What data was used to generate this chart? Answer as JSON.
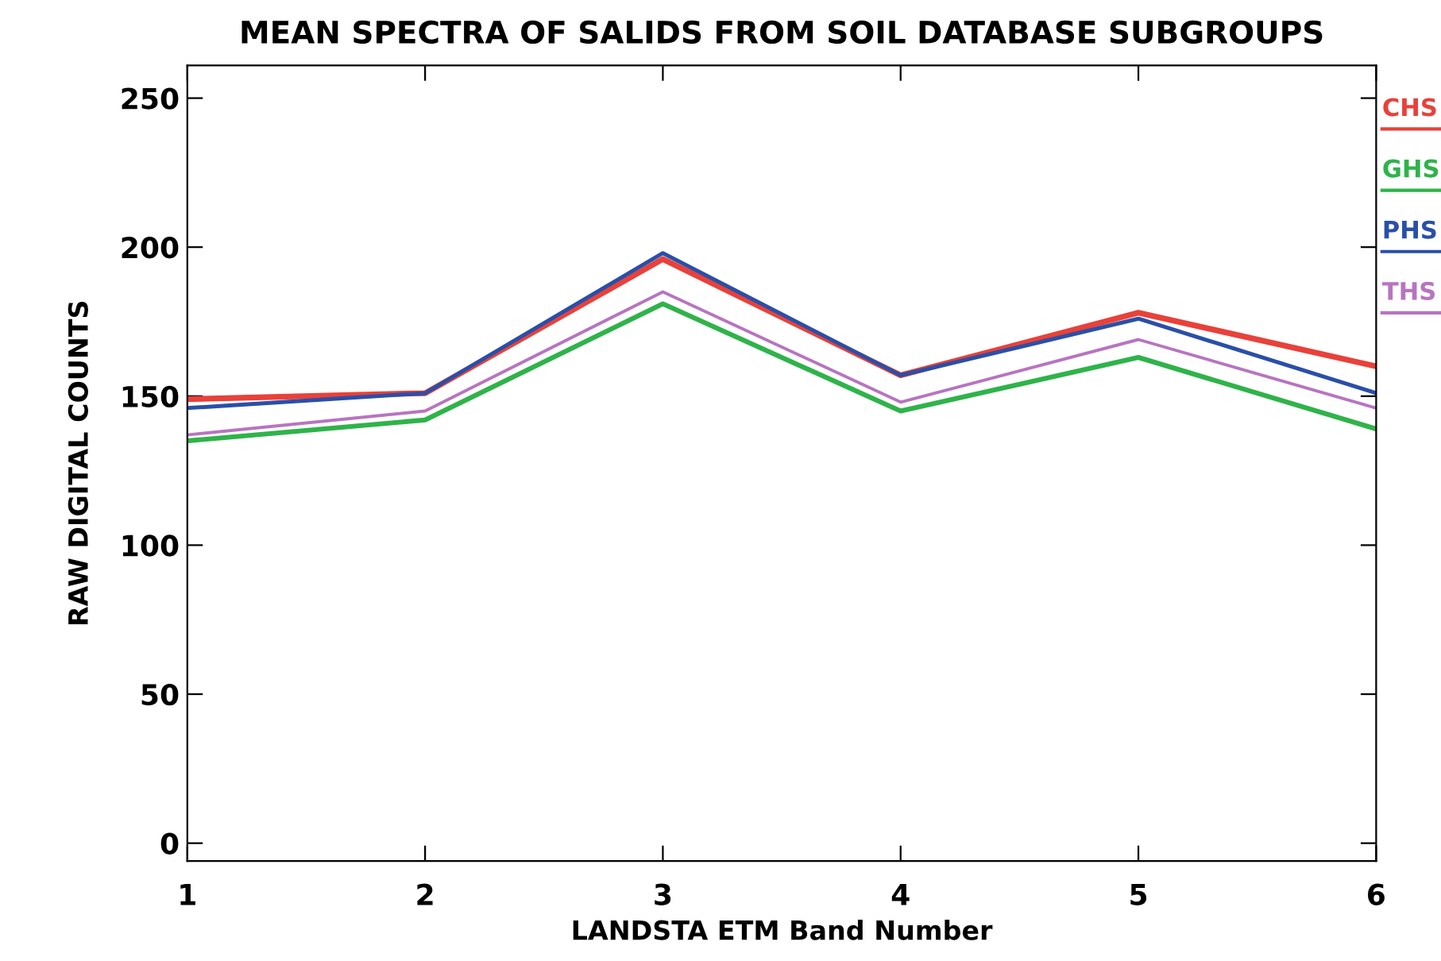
{
  "chart_data": {
    "type": "line",
    "title": "MEAN SPECTRA OF SALIDS FROM SOIL DATABASE SUBGROUPS",
    "xlabel": "LANDSTA ETM Band Number",
    "ylabel": "RAW DIGITAL COUNTS",
    "x": [
      1,
      2,
      3,
      4,
      5,
      6
    ],
    "series": [
      {
        "name": "CHS",
        "color": "#e8413a",
        "values": [
          149,
          151,
          196,
          157,
          178,
          160
        ]
      },
      {
        "name": "GHS",
        "color": "#2fb34a",
        "values": [
          135,
          142,
          181,
          145,
          163,
          139
        ]
      },
      {
        "name": "PHS",
        "color": "#2a4fa8",
        "values": [
          146,
          151,
          198,
          157,
          176,
          151
        ]
      },
      {
        "name": "THS",
        "color": "#b774c0",
        "values": [
          137,
          145,
          185,
          148,
          169,
          146
        ]
      }
    ],
    "xlim": [
      1,
      6
    ],
    "xticks": [
      1,
      2,
      3,
      4,
      5,
      6
    ],
    "ylim": [
      -6,
      261
    ],
    "yticks": [
      0,
      50,
      100,
      150,
      200,
      250
    ],
    "grid": false,
    "legend": "right",
    "marker": "none",
    "line_style": "solid"
  }
}
